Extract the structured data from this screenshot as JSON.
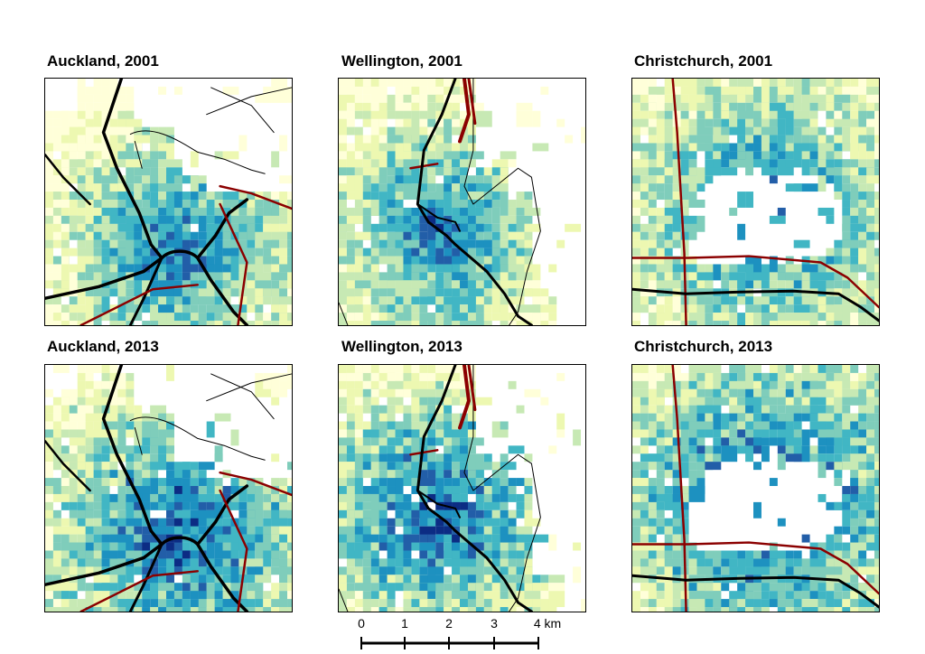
{
  "panels": [
    {
      "id": "auckland-2001",
      "title": "Auckland, 2001",
      "city": "auckland",
      "year": 2001
    },
    {
      "id": "wellington-2001",
      "title": "Wellington, 2001",
      "city": "wellington",
      "year": 2001
    },
    {
      "id": "christchurch-2001",
      "title": "Christchurch, 2001",
      "city": "christchurch",
      "year": 2001
    },
    {
      "id": "auckland-2013",
      "title": "Auckland, 2013",
      "city": "auckland",
      "year": 2013
    },
    {
      "id": "wellington-2013",
      "title": "Wellington, 2013",
      "city": "wellington",
      "year": 2013
    },
    {
      "id": "christchurch-2013",
      "title": "Christchurch, 2013",
      "city": "christchurch",
      "year": 2013
    }
  ],
  "scale_bar": {
    "labels": [
      "0",
      "1",
      "2",
      "3",
      "4 km"
    ]
  },
  "colors": {
    "palette": [
      "#ffffd9",
      "#edf8b1",
      "#c7e9b4",
      "#7fcdbb",
      "#41b6c4",
      "#1d91c0",
      "#225ea8",
      "#0c2c84"
    ],
    "rail": "#8b0000",
    "road": "#000000",
    "coast": "#000000"
  }
}
